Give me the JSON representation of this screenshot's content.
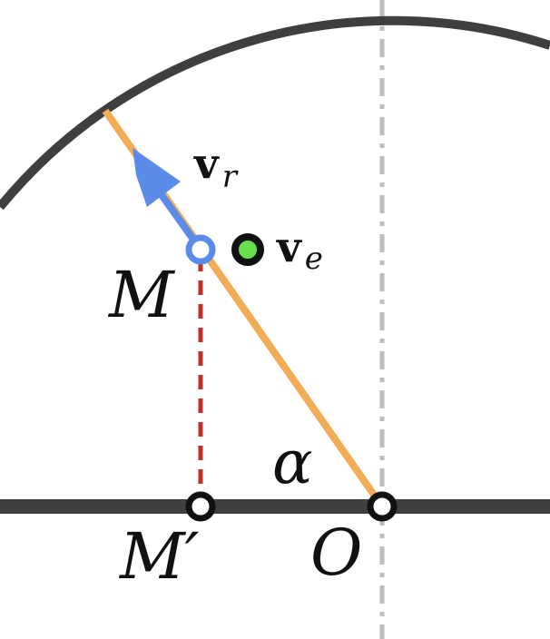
{
  "labels": {
    "point_m": "M",
    "point_m_prime": "M′",
    "point_o": "O",
    "angle": "α",
    "vr_vector": "v",
    "vr_subscript": "r",
    "ve_vector": "v",
    "ve_subscript": "e"
  },
  "colors": {
    "ground": "#3f3f3f",
    "circle": "#3f3f3f",
    "rod": "#f2ac55",
    "arrow": "#5b8be8",
    "projection": "#c0302a",
    "axis": "#bdbdbd",
    "ve_dot": "#66e04a",
    "m_point": "#5b8be8"
  }
}
